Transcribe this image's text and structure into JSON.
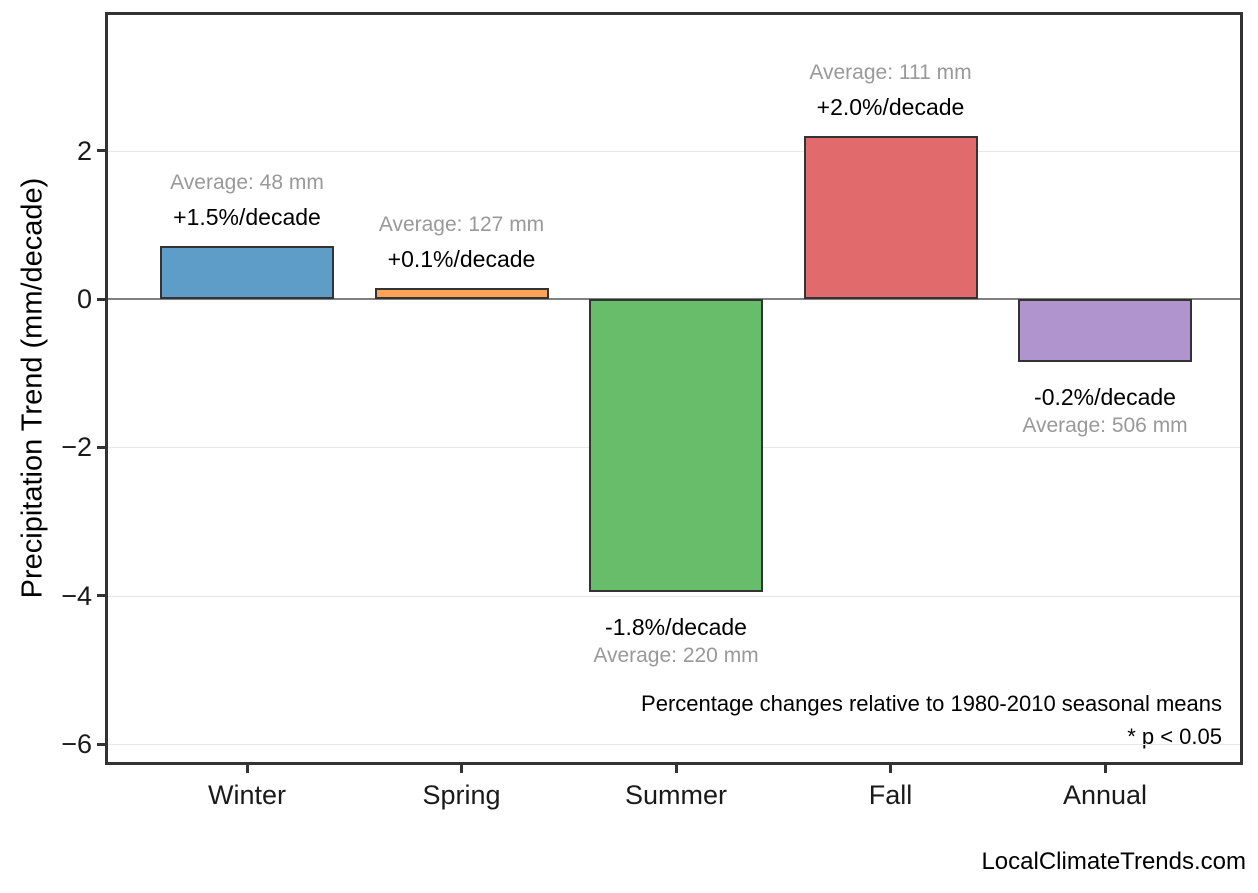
{
  "chart_data": {
    "type": "bar",
    "title": "",
    "xlabel": "",
    "ylabel": "Precipitation Trend (mm/decade)",
    "categories": [
      "Winter",
      "Spring",
      "Summer",
      "Fall",
      "Annual"
    ],
    "values": [
      0.72,
      0.15,
      -3.95,
      2.2,
      -0.85
    ],
    "bars": [
      {
        "category": "Winter",
        "value": 0.72,
        "color": "#5e9dc8",
        "trend_label": "+1.5%/decade",
        "average_label": "Average: 48 mm"
      },
      {
        "category": "Spring",
        "value": 0.15,
        "color": "#fba457",
        "trend_label": "+0.1%/decade",
        "average_label": "Average: 127 mm"
      },
      {
        "category": "Summer",
        "value": -3.95,
        "color": "#68bd6b",
        "trend_label": "-1.8%/decade",
        "average_label": "Average: 220 mm"
      },
      {
        "category": "Fall",
        "value": 2.2,
        "color": "#e16a6c",
        "trend_label": "+2.0%/decade",
        "average_label": "Average: 111 mm"
      },
      {
        "category": "Annual",
        "value": -0.85,
        "color": "#af94cd",
        "trend_label": "-0.2%/decade",
        "average_label": "Average: 506 mm"
      }
    ],
    "yticks": [
      2,
      0,
      -2,
      -4,
      -6
    ],
    "ytick_labels": [
      "2",
      "0",
      "−2",
      "−4",
      "−6"
    ],
    "ylim": [
      -6.3,
      3.85
    ],
    "grid": "horizontal light-gray lines at ticks, darker line at zero",
    "legend": "none",
    "annotations": {
      "note_line1": "Percentage changes relative to 1980-2010 seasonal means",
      "note_line2": "* p < 0.05",
      "watermark": "LocalClimateTrends.com"
    }
  },
  "colors": {
    "axis_border": "#333333",
    "zero_line": "#808080",
    "grid_line": "#e8e8e8",
    "average_text": "#999999",
    "trend_text": "#000000"
  }
}
